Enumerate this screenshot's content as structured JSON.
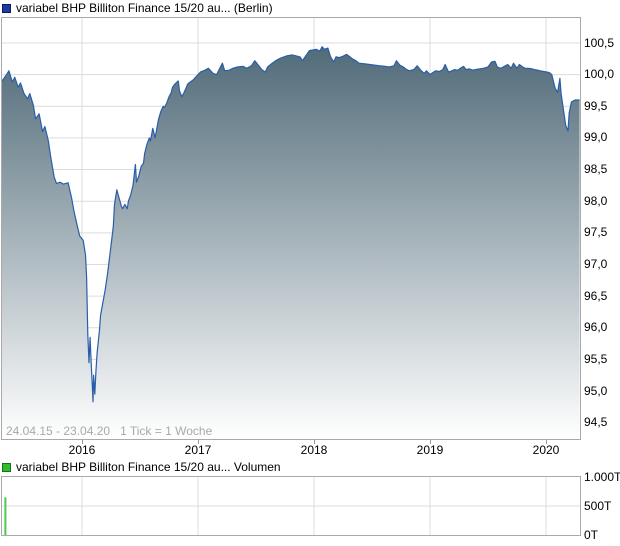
{
  "price_chart": {
    "legend_label": "variabel BHP Billiton Finance 15/20 au... (Berlin)",
    "range_note": "24.04.15 - 23.04.20   1 Tick = 1 Woche"
  },
  "volume_chart": {
    "legend_label": "variabel BHP Billiton Finance 15/20 au... Volumen"
  },
  "colors": {
    "price_line": "#2b5ea7",
    "area_fill_top": "#44606f",
    "area_fill_bottom": "#ffffff",
    "grid": "#dcdcdc",
    "plot_border": "#a9a9a9",
    "volume_bar": "#4dc94d",
    "price_marker": "#1c3aa0",
    "volume_marker": "#2fbd2f"
  },
  "chart_data": [
    {
      "type": "area",
      "title": "variabel BHP Billiton Finance 15/20 au... (Berlin)",
      "x_axis": {
        "ticks": [
          2016,
          2017,
          2018,
          2019,
          2020
        ],
        "labels": [
          "2016",
          "2017",
          "2018",
          "2019",
          "2020"
        ],
        "range": [
          "24.04.15",
          "23.04.20"
        ],
        "tick_note": "1 Tick = 1 Woche"
      },
      "y_axis": {
        "side": "right",
        "ticks": [
          100.5,
          100.0,
          99.5,
          99.0,
          98.5,
          98.0,
          97.5,
          97.0,
          96.5,
          96.0,
          95.5,
          95.0,
          94.5
        ],
        "labels": [
          "100,5",
          "100,0",
          "99,5",
          "99,0",
          "98,5",
          "98,0",
          "97,5",
          "97,0",
          "96,5",
          "96,0",
          "95,5",
          "95,0",
          "94,5"
        ],
        "lim": [
          94.25,
          100.9
        ]
      },
      "grid": true,
      "points": [
        [
          2015.31,
          99.9
        ],
        [
          2015.35,
          100.0
        ],
        [
          2015.37,
          100.06
        ],
        [
          2015.4,
          99.88
        ],
        [
          2015.42,
          99.96
        ],
        [
          2015.45,
          99.8
        ],
        [
          2015.47,
          99.87
        ],
        [
          2015.5,
          99.7
        ],
        [
          2015.53,
          99.62
        ],
        [
          2015.55,
          99.7
        ],
        [
          2015.58,
          99.52
        ],
        [
          2015.6,
          99.3
        ],
        [
          2015.63,
          99.38
        ],
        [
          2015.66,
          99.1
        ],
        [
          2015.68,
          99.18
        ],
        [
          2015.71,
          98.95
        ],
        [
          2015.73,
          98.7
        ],
        [
          2015.76,
          98.38
        ],
        [
          2015.78,
          98.28
        ],
        [
          2015.81,
          98.3
        ],
        [
          2015.84,
          98.27
        ],
        [
          2015.88,
          98.29
        ],
        [
          2015.91,
          98.05
        ],
        [
          2015.93,
          97.85
        ],
        [
          2015.96,
          97.6
        ],
        [
          2015.98,
          97.45
        ],
        [
          2016.01,
          97.38
        ],
        [
          2016.03,
          97.15
        ],
        [
          2016.04,
          96.8
        ],
        [
          2016.05,
          95.9
        ],
        [
          2016.06,
          95.45
        ],
        [
          2016.07,
          95.85
        ],
        [
          2016.08,
          95.4
        ],
        [
          2016.09,
          95.05
        ],
        [
          2016.095,
          94.83
        ],
        [
          2016.1,
          95.25
        ],
        [
          2016.11,
          94.95
        ],
        [
          2016.12,
          95.3
        ],
        [
          2016.13,
          95.6
        ],
        [
          2016.15,
          95.95
        ],
        [
          2016.16,
          96.2
        ],
        [
          2016.18,
          96.4
        ],
        [
          2016.2,
          96.6
        ],
        [
          2016.22,
          96.85
        ],
        [
          2016.23,
          97.0
        ],
        [
          2016.25,
          97.3
        ],
        [
          2016.27,
          97.6
        ],
        [
          2016.28,
          97.95
        ],
        [
          2016.3,
          98.18
        ],
        [
          2016.32,
          98.05
        ],
        [
          2016.34,
          97.92
        ],
        [
          2016.35,
          97.88
        ],
        [
          2016.37,
          97.95
        ],
        [
          2016.39,
          97.88
        ],
        [
          2016.4,
          98.0
        ],
        [
          2016.42,
          98.1
        ],
        [
          2016.44,
          98.25
        ],
        [
          2016.46,
          98.58
        ],
        [
          2016.47,
          98.3
        ],
        [
          2016.49,
          98.4
        ],
        [
          2016.51,
          98.55
        ],
        [
          2016.53,
          98.6
        ],
        [
          2016.54,
          98.75
        ],
        [
          2016.56,
          98.9
        ],
        [
          2016.58,
          99.0
        ],
        [
          2016.59,
          98.95
        ],
        [
          2016.61,
          99.15
        ],
        [
          2016.63,
          99.0
        ],
        [
          2016.65,
          99.2
        ],
        [
          2016.66,
          99.3
        ],
        [
          2016.68,
          99.42
        ],
        [
          2016.7,
          99.5
        ],
        [
          2016.71,
          99.48
        ],
        [
          2016.73,
          99.55
        ],
        [
          2016.75,
          99.65
        ],
        [
          2016.77,
          99.72
        ],
        [
          2016.78,
          99.8
        ],
        [
          2016.8,
          99.85
        ],
        [
          2016.83,
          99.9
        ],
        [
          2016.84,
          99.75
        ],
        [
          2016.86,
          99.65
        ],
        [
          2016.88,
          99.72
        ],
        [
          2016.9,
          99.8
        ],
        [
          2016.91,
          99.85
        ],
        [
          2016.93,
          99.88
        ],
        [
          2016.96,
          99.92
        ],
        [
          2017.0,
          100.0
        ],
        [
          2017.02,
          100.04
        ],
        [
          2017.06,
          100.07
        ],
        [
          2017.09,
          100.1
        ],
        [
          2017.13,
          100.02
        ],
        [
          2017.16,
          100.0
        ],
        [
          2017.21,
          100.18
        ],
        [
          2017.23,
          100.06
        ],
        [
          2017.27,
          100.07
        ],
        [
          2017.3,
          100.1
        ],
        [
          2017.34,
          100.12
        ],
        [
          2017.39,
          100.13
        ],
        [
          2017.42,
          100.1
        ],
        [
          2017.46,
          100.14
        ],
        [
          2017.49,
          100.22
        ],
        [
          2017.52,
          100.15
        ],
        [
          2017.55,
          100.08
        ],
        [
          2017.58,
          100.04
        ],
        [
          2017.6,
          100.12
        ],
        [
          2017.64,
          100.18
        ],
        [
          2017.67,
          100.22
        ],
        [
          2017.71,
          100.26
        ],
        [
          2017.74,
          100.28
        ],
        [
          2017.77,
          100.3
        ],
        [
          2017.81,
          100.31
        ],
        [
          2017.84,
          100.3
        ],
        [
          2017.88,
          100.28
        ],
        [
          2017.9,
          100.22
        ],
        [
          2017.93,
          100.3
        ],
        [
          2017.96,
          100.38
        ],
        [
          2017.99,
          100.39
        ],
        [
          2018.02,
          100.4
        ],
        [
          2018.05,
          100.37
        ],
        [
          2018.07,
          100.44
        ],
        [
          2018.09,
          100.4
        ],
        [
          2018.12,
          100.42
        ],
        [
          2018.14,
          100.3
        ],
        [
          2018.15,
          100.26
        ],
        [
          2018.17,
          100.2
        ],
        [
          2018.19,
          100.28
        ],
        [
          2018.22,
          100.27
        ],
        [
          2018.26,
          100.3
        ],
        [
          2018.28,
          100.32
        ],
        [
          2018.31,
          100.28
        ],
        [
          2018.33,
          100.25
        ],
        [
          2018.36,
          100.22
        ],
        [
          2018.39,
          100.18
        ],
        [
          2018.44,
          100.17
        ],
        [
          2018.48,
          100.16
        ],
        [
          2018.52,
          100.15
        ],
        [
          2018.57,
          100.14
        ],
        [
          2018.61,
          100.13
        ],
        [
          2018.65,
          100.12
        ],
        [
          2018.69,
          100.14
        ],
        [
          2018.71,
          100.22
        ],
        [
          2018.74,
          100.15
        ],
        [
          2018.77,
          100.12
        ],
        [
          2018.79,
          100.09
        ],
        [
          2018.82,
          100.06
        ],
        [
          2018.86,
          100.08
        ],
        [
          2018.89,
          100.14
        ],
        [
          2018.92,
          100.07
        ],
        [
          2018.95,
          100.02
        ],
        [
          2018.97,
          100.06
        ],
        [
          2019.0,
          100.0
        ],
        [
          2019.03,
          100.04
        ],
        [
          2019.05,
          100.06
        ],
        [
          2019.08,
          100.05
        ],
        [
          2019.11,
          100.08
        ],
        [
          2019.13,
          100.16
        ],
        [
          2019.16,
          100.04
        ],
        [
          2019.19,
          100.06
        ],
        [
          2019.21,
          100.08
        ],
        [
          2019.24,
          100.07
        ],
        [
          2019.26,
          100.1
        ],
        [
          2019.29,
          100.13
        ],
        [
          2019.31,
          100.08
        ],
        [
          2019.34,
          100.09
        ],
        [
          2019.37,
          100.07
        ],
        [
          2019.39,
          100.08
        ],
        [
          2019.43,
          100.09
        ],
        [
          2019.46,
          100.1
        ],
        [
          2019.5,
          100.12
        ],
        [
          2019.53,
          100.2
        ],
        [
          2019.56,
          100.21
        ],
        [
          2019.58,
          100.12
        ],
        [
          2019.61,
          100.1
        ],
        [
          2019.63,
          100.12
        ],
        [
          2019.67,
          100.16
        ],
        [
          2019.7,
          100.1
        ],
        [
          2019.72,
          100.18
        ],
        [
          2019.75,
          100.1
        ],
        [
          2019.77,
          100.16
        ],
        [
          2019.8,
          100.12
        ],
        [
          2019.82,
          100.1
        ],
        [
          2019.85,
          100.1
        ],
        [
          2019.88,
          100.09
        ],
        [
          2019.9,
          100.08
        ],
        [
          2019.93,
          100.07
        ],
        [
          2019.95,
          100.06
        ],
        [
          2019.98,
          100.05
        ],
        [
          2020.01,
          100.04
        ],
        [
          2020.03,
          100.03
        ],
        [
          2020.05,
          100.0
        ],
        [
          2020.07,
          99.85
        ],
        [
          2020.08,
          99.78
        ],
        [
          2020.1,
          99.72
        ],
        [
          2020.12,
          99.94
        ],
        [
          2020.13,
          99.7
        ],
        [
          2020.15,
          99.45
        ],
        [
          2020.17,
          99.2
        ],
        [
          2020.19,
          99.11
        ],
        [
          2020.2,
          99.4
        ],
        [
          2020.22,
          99.57
        ],
        [
          2020.25,
          99.6
        ],
        [
          2020.27,
          99.6
        ],
        [
          2020.29,
          99.6
        ]
      ]
    },
    {
      "type": "bar",
      "title": "variabel BHP Billiton Finance 15/20 au... Volumen",
      "y_axis": {
        "side": "right",
        "ticks": [
          1000,
          500,
          0
        ],
        "labels": [
          "1.000T",
          "500T",
          "0T"
        ],
        "lim": [
          0,
          1000
        ]
      },
      "x_axis": {
        "ticks": [
          2016,
          2017,
          2018,
          2019,
          2020
        ]
      },
      "points": [
        [
          2015.34,
          650
        ]
      ]
    }
  ]
}
